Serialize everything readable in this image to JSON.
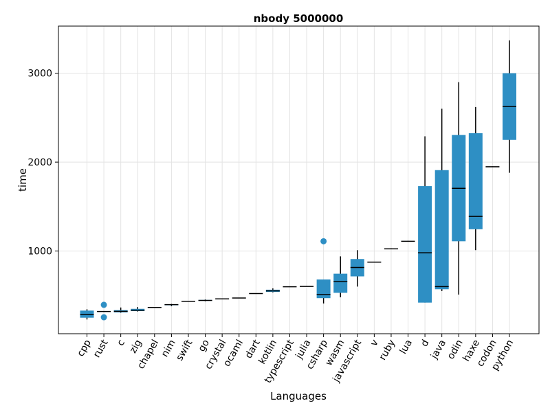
{
  "chart_data": {
    "type": "box",
    "title": "nbody 5000000",
    "xlabel": "Languages",
    "ylabel": "time",
    "ylim": [
      70,
      3530
    ],
    "yticks": [
      1000,
      2000,
      3000
    ],
    "grid": true,
    "legend": "none",
    "color": "#2e8fc4",
    "categories": [
      "cpp",
      "rust",
      "c",
      "zig",
      "chapel",
      "nim",
      "swift",
      "go",
      "crystal",
      "ocaml",
      "dart",
      "kotlin",
      "typescript",
      "julia",
      "csharp",
      "wasm",
      "javascript",
      "v",
      "ruby",
      "lua",
      "d",
      "java",
      "odin",
      "haxe",
      "codon",
      "python"
    ],
    "boxes": [
      {
        "label": "cpp",
        "min": 230,
        "q1": 250,
        "median": 285,
        "q3": 330,
        "max": 345
      },
      {
        "label": "rust",
        "min": 315,
        "q1": 318,
        "median": 320,
        "q3": 322,
        "max": 325,
        "outliers": [
          255,
          395
        ]
      },
      {
        "label": "c",
        "min": 305,
        "q1": 310,
        "median": 322,
        "q3": 335,
        "max": 365
      },
      {
        "label": "zig",
        "min": 320,
        "q1": 325,
        "median": 335,
        "q3": 350,
        "max": 370
      },
      {
        "label": "chapel",
        "min": 362,
        "q1": 363,
        "median": 365,
        "q3": 367,
        "max": 368
      },
      {
        "label": "nim",
        "min": 380,
        "q1": 390,
        "median": 397,
        "q3": 402,
        "max": 405
      },
      {
        "label": "swift",
        "min": 432,
        "q1": 433,
        "median": 435,
        "q3": 437,
        "max": 438
      },
      {
        "label": "go",
        "min": 435,
        "q1": 440,
        "median": 445,
        "q3": 450,
        "max": 455
      },
      {
        "label": "crystal",
        "min": 460,
        "q1": 461,
        "median": 462,
        "q3": 464,
        "max": 466
      },
      {
        "label": "ocaml",
        "min": 470,
        "q1": 471,
        "median": 472,
        "q3": 473,
        "max": 474
      },
      {
        "label": "dart",
        "min": 520,
        "q1": 521,
        "median": 522,
        "q3": 523,
        "max": 524
      },
      {
        "label": "kotlin",
        "min": 535,
        "q1": 540,
        "median": 552,
        "q3": 565,
        "max": 580
      },
      {
        "label": "typescript",
        "min": 595,
        "q1": 596,
        "median": 598,
        "q3": 600,
        "max": 602
      },
      {
        "label": "julia",
        "min": 600,
        "q1": 601,
        "median": 602,
        "q3": 603,
        "max": 604
      },
      {
        "label": "csharp",
        "min": 410,
        "q1": 470,
        "median": 510,
        "q3": 680,
        "max": 680,
        "outliers": [
          1110
        ]
      },
      {
        "label": "wasm",
        "min": 480,
        "q1": 530,
        "median": 655,
        "q3": 745,
        "max": 940
      },
      {
        "label": "javascript",
        "min": 600,
        "q1": 715,
        "median": 815,
        "q3": 910,
        "max": 1010
      },
      {
        "label": "v",
        "min": 870,
        "q1": 872,
        "median": 875,
        "q3": 878,
        "max": 880
      },
      {
        "label": "ruby",
        "min": 1020,
        "q1": 1022,
        "median": 1025,
        "q3": 1027,
        "max": 1030
      },
      {
        "label": "lua",
        "min": 1105,
        "q1": 1107,
        "median": 1110,
        "q3": 1113,
        "max": 1115
      },
      {
        "label": "d",
        "min": 420,
        "q1": 420,
        "median": 980,
        "q3": 1730,
        "max": 2290
      },
      {
        "label": "java",
        "min": 550,
        "q1": 570,
        "median": 600,
        "q3": 1910,
        "max": 2600
      },
      {
        "label": "odin",
        "min": 510,
        "q1": 1110,
        "median": 1705,
        "q3": 2305,
        "max": 2900
      },
      {
        "label": "haxe",
        "min": 1010,
        "q1": 1245,
        "median": 1390,
        "q3": 2325,
        "max": 2620
      },
      {
        "label": "codon",
        "min": 1945,
        "q1": 1946,
        "median": 1948,
        "q3": 1950,
        "max": 1952
      },
      {
        "label": "python",
        "min": 1880,
        "q1": 2250,
        "median": 2625,
        "q3": 3000,
        "max": 3370
      }
    ]
  }
}
